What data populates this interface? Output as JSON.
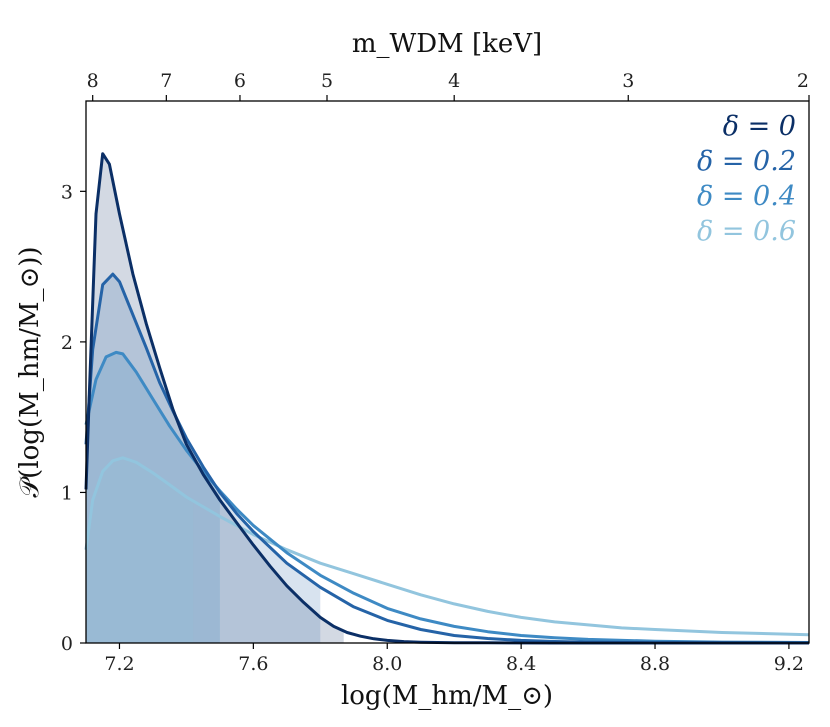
{
  "chart_data": {
    "type": "line",
    "xlabel": "log(M_hm/M_⊙)",
    "ylabel": "𝒫(log(M_hm/M_⊙))",
    "top_xlabel": "m_WDM [keV]",
    "xlim": [
      7.1,
      9.26
    ],
    "ylim": [
      0,
      3.6
    ],
    "x_ticks": [
      7.2,
      7.6,
      8.0,
      8.4,
      8.8,
      9.2
    ],
    "x_tick_labels": [
      "7.2",
      "7.6",
      "8.0",
      "8.4",
      "8.8",
      "9.2"
    ],
    "y_ticks": [
      0,
      1,
      2,
      3
    ],
    "y_tick_labels": [
      "0",
      "1",
      "2",
      "3"
    ],
    "top_axis_ticks": [
      {
        "label": "8",
        "x": 7.12
      },
      {
        "label": "7",
        "x": 7.34
      },
      {
        "label": "6",
        "x": 7.56
      },
      {
        "label": "5",
        "x": 7.82
      },
      {
        "label": "4",
        "x": 8.2
      },
      {
        "label": "3",
        "x": 8.72
      },
      {
        "label": "2",
        "x": 9.26
      }
    ],
    "legend_position": "top-right",
    "series": [
      {
        "name": "δ = 0",
        "color": "#0b2f66",
        "fill_opacity": 0.18,
        "fill_to": 7.87,
        "x": [
          7.1,
          7.11,
          7.13,
          7.15,
          7.17,
          7.2,
          7.24,
          7.28,
          7.32,
          7.36,
          7.4,
          7.45,
          7.5,
          7.55,
          7.6,
          7.65,
          7.7,
          7.75,
          7.8,
          7.84,
          7.88,
          7.92,
          7.96,
          8.0,
          8.05,
          8.1,
          8.2,
          8.3,
          8.5,
          8.8,
          9.26
        ],
        "y": [
          1.02,
          1.65,
          2.85,
          3.25,
          3.18,
          2.85,
          2.45,
          2.12,
          1.83,
          1.55,
          1.32,
          1.12,
          0.95,
          0.8,
          0.65,
          0.51,
          0.38,
          0.27,
          0.17,
          0.11,
          0.07,
          0.045,
          0.028,
          0.017,
          0.009,
          0.005,
          0.002,
          0.001,
          0.0,
          0.0,
          0.0
        ]
      },
      {
        "name": "δ = 0.2",
        "color": "#2563a7",
        "fill_opacity": 0.18,
        "fill_to": 7.8,
        "x": [
          7.1,
          7.12,
          7.15,
          7.18,
          7.2,
          7.24,
          7.28,
          7.32,
          7.36,
          7.4,
          7.45,
          7.5,
          7.55,
          7.6,
          7.7,
          7.8,
          7.9,
          8.0,
          8.1,
          8.2,
          8.3,
          8.4,
          8.5,
          8.6,
          8.8,
          9.0,
          9.26
        ],
        "y": [
          1.32,
          1.95,
          2.38,
          2.45,
          2.4,
          2.18,
          1.96,
          1.73,
          1.54,
          1.36,
          1.17,
          1.0,
          0.86,
          0.74,
          0.53,
          0.37,
          0.24,
          0.15,
          0.09,
          0.05,
          0.03,
          0.017,
          0.01,
          0.006,
          0.002,
          0.001,
          0.0
        ]
      },
      {
        "name": "δ = 0.4",
        "color": "#3e8ac4",
        "fill_opacity": 0.2,
        "fill_to": 7.5,
        "x": [
          7.1,
          7.13,
          7.16,
          7.19,
          7.21,
          7.25,
          7.3,
          7.35,
          7.4,
          7.45,
          7.5,
          7.55,
          7.6,
          7.7,
          7.8,
          7.9,
          8.0,
          8.1,
          8.2,
          8.3,
          8.4,
          8.5,
          8.6,
          8.8,
          9.0,
          9.26
        ],
        "y": [
          1.45,
          1.75,
          1.9,
          1.93,
          1.92,
          1.8,
          1.62,
          1.44,
          1.28,
          1.14,
          1.01,
          0.89,
          0.78,
          0.6,
          0.45,
          0.33,
          0.23,
          0.16,
          0.11,
          0.075,
          0.05,
          0.035,
          0.024,
          0.012,
          0.006,
          0.003
        ]
      },
      {
        "name": "δ = 0.6",
        "color": "#92c5de",
        "fill_opacity": 0.2,
        "fill_to": 7.42,
        "x": [
          7.1,
          7.12,
          7.15,
          7.18,
          7.21,
          7.25,
          7.3,
          7.35,
          7.4,
          7.5,
          7.6,
          7.7,
          7.8,
          7.9,
          8.0,
          8.1,
          8.2,
          8.3,
          8.4,
          8.5,
          8.6,
          8.7,
          8.8,
          9.0,
          9.26
        ],
        "y": [
          0.62,
          0.95,
          1.14,
          1.21,
          1.23,
          1.2,
          1.13,
          1.05,
          0.97,
          0.84,
          0.72,
          0.62,
          0.53,
          0.46,
          0.39,
          0.32,
          0.26,
          0.21,
          0.17,
          0.14,
          0.12,
          0.1,
          0.09,
          0.07,
          0.055
        ]
      }
    ]
  }
}
